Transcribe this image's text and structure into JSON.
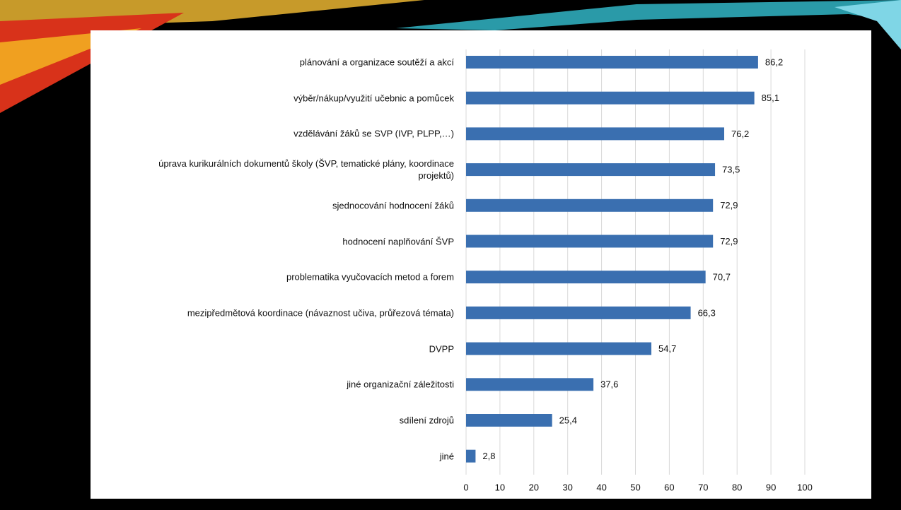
{
  "chart_data": {
    "type": "bar",
    "orientation": "horizontal",
    "categories": [
      "plánování a organizace soutěží a akcí",
      "výběr/nákup/využití učebnic a pomůcek",
      "vzdělávání žáků se SVP (IVP, PLPP,…)",
      "úprava kurikurálních dokumentů školy (ŠVP, tematické plány, koordinace projektů)",
      "sjednocování hodnocení žáků",
      "hodnocení naplňování ŠVP",
      "problematika vyučovacích metod a forem",
      "mezipředmětová koordinace (návaznost učiva, průřezová témata)",
      "DVPP",
      "jiné organizační záležitosti",
      "sdílení zdrojů",
      "jiné"
    ],
    "values": [
      86.2,
      85.1,
      76.2,
      73.5,
      72.9,
      72.9,
      70.7,
      66.3,
      54.7,
      37.6,
      25.4,
      2.8
    ],
    "value_labels": [
      "86,2",
      "85,1",
      "76,2",
      "73,5",
      "72,9",
      "72,9",
      "70,7",
      "66,3",
      "54,7",
      "37,6",
      "25,4",
      "2,8"
    ],
    "color": "#3a6fb0",
    "xlim": [
      0,
      100
    ],
    "xticks": [
      0,
      10,
      20,
      30,
      40,
      50,
      60,
      70,
      80,
      90,
      100
    ],
    "grid": true
  }
}
